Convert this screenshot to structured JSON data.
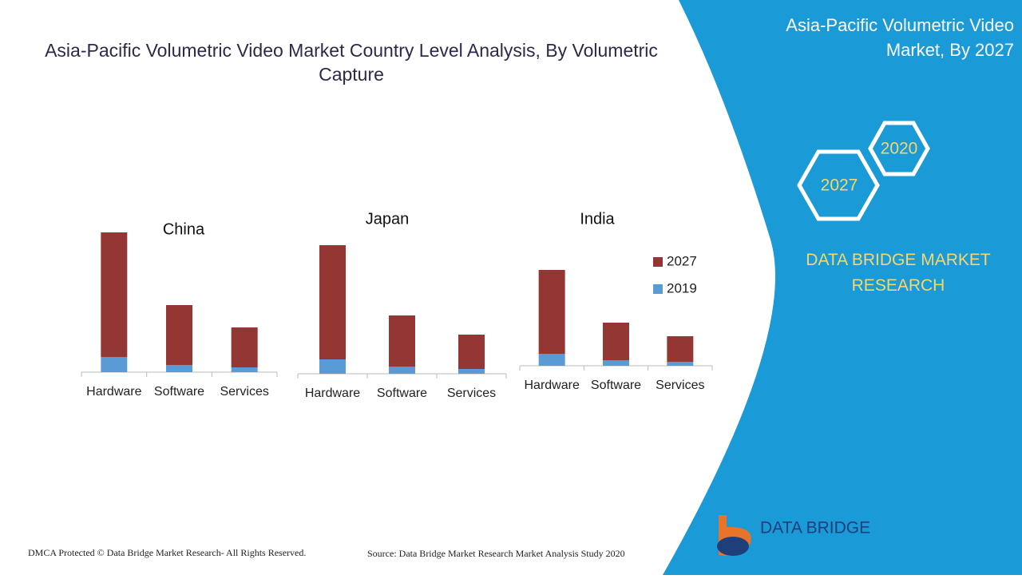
{
  "header": {
    "title": "Asia-Pacific Volumetric Video Market Country Level Analysis, By Volumetric Capture"
  },
  "side_panel": {
    "title": "Asia-Pacific Volumetric Video Market, By 2027",
    "hexagons": [
      "2020",
      "2027"
    ],
    "brand": "DATA BRIDGE MARKET RESEARCH"
  },
  "chart_data": [
    {
      "type": "bar",
      "stacked": true,
      "title": "China",
      "categories": [
        "Hardware",
        "Software",
        "Services"
      ],
      "series": [
        {
          "color": "#5b9bd5",
          "values": [
            19,
            9,
            6
          ]
        },
        {
          "color": "#943634",
          "values": [
            156,
            75,
            50
          ]
        }
      ]
    },
    {
      "type": "bar",
      "stacked": true,
      "title": "Japan",
      "categories": [
        "Hardware",
        "Software",
        "Services"
      ],
      "series": [
        {
          "color": "#5b9bd5",
          "values": [
            18,
            9,
            6
          ]
        },
        {
          "color": "#943634",
          "values": [
            143,
            64,
            43
          ]
        }
      ]
    },
    {
      "type": "bar",
      "stacked": true,
      "title": "India",
      "categories": [
        "Hardware",
        "Software",
        "Services"
      ],
      "legend": "right",
      "series": [
        {
          "name": "2019",
          "color": "#5b9bd5",
          "values": [
            15,
            7,
            5
          ]
        },
        {
          "name": "2027",
          "color": "#943634",
          "values": [
            105,
            47,
            32
          ]
        }
      ]
    }
  ],
  "footer": {
    "copyright": "DMCA Protected © Data Bridge Market Research- All Rights Reserved.",
    "source": "Source: Data Bridge Market Research Market Analysis Study 2020",
    "logo": "DATA BRIDGE"
  }
}
